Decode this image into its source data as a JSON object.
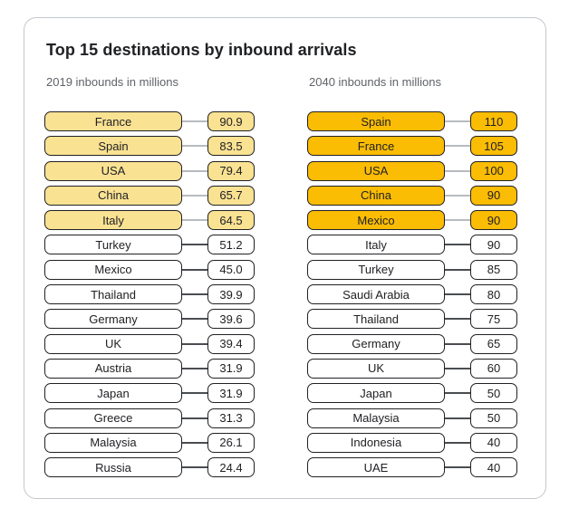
{
  "title": "Top 15 destinations by inbound arrivals",
  "colors": {
    "highlight_2019": "#FAE293",
    "highlight_2040": "#FBBC04",
    "pill_border": "#202124",
    "card_border": "#C3C7CB",
    "subtitle_text": "#5F6368",
    "connector_normal": "#4A4D51",
    "connector_highlighted": "#B7BBBF"
  },
  "columns": [
    {
      "subtitle": "2019 inbounds in millions",
      "highlight_color": "#FAE293",
      "rows": [
        {
          "label": "France",
          "value": "90.9",
          "highlighted": true
        },
        {
          "label": "Spain",
          "value": "83.5",
          "highlighted": true
        },
        {
          "label": "USA",
          "value": "79.4",
          "highlighted": true
        },
        {
          "label": "China",
          "value": "65.7",
          "highlighted": true
        },
        {
          "label": "Italy",
          "value": "64.5",
          "highlighted": true
        },
        {
          "label": "Turkey",
          "value": "51.2",
          "highlighted": false
        },
        {
          "label": "Mexico",
          "value": "45.0",
          "highlighted": false
        },
        {
          "label": "Thailand",
          "value": "39.9",
          "highlighted": false
        },
        {
          "label": "Germany",
          "value": "39.6",
          "highlighted": false
        },
        {
          "label": "UK",
          "value": "39.4",
          "highlighted": false
        },
        {
          "label": "Austria",
          "value": "31.9",
          "highlighted": false
        },
        {
          "label": "Japan",
          "value": "31.9",
          "highlighted": false
        },
        {
          "label": "Greece",
          "value": "31.3",
          "highlighted": false
        },
        {
          "label": "Malaysia",
          "value": "26.1",
          "highlighted": false
        },
        {
          "label": "Russia",
          "value": "24.4",
          "highlighted": false
        }
      ]
    },
    {
      "subtitle": "2040 inbounds in millions",
      "highlight_color": "#FBBC04",
      "rows": [
        {
          "label": "Spain",
          "value": "110",
          "highlighted": true
        },
        {
          "label": "France",
          "value": "105",
          "highlighted": true
        },
        {
          "label": "USA",
          "value": "100",
          "highlighted": true
        },
        {
          "label": "China",
          "value": "90",
          "highlighted": true
        },
        {
          "label": "Mexico",
          "value": "90",
          "highlighted": true
        },
        {
          "label": "Italy",
          "value": "90",
          "highlighted": false
        },
        {
          "label": "Turkey",
          "value": "85",
          "highlighted": false
        },
        {
          "label": "Saudi Arabia",
          "value": "80",
          "highlighted": false
        },
        {
          "label": "Thailand",
          "value": "75",
          "highlighted": false
        },
        {
          "label": "Germany",
          "value": "65",
          "highlighted": false
        },
        {
          "label": "UK",
          "value": "60",
          "highlighted": false
        },
        {
          "label": "Japan",
          "value": "50",
          "highlighted": false
        },
        {
          "label": "Malaysia",
          "value": "50",
          "highlighted": false
        },
        {
          "label": "Indonesia",
          "value": "40",
          "highlighted": false
        },
        {
          "label": "UAE",
          "value": "40",
          "highlighted": false
        }
      ]
    }
  ],
  "chart_data": [
    {
      "type": "table",
      "title": "Top 15 destinations by inbound arrivals",
      "subtitle": "2019 inbounds in millions",
      "categories": [
        "France",
        "Spain",
        "USA",
        "China",
        "Italy",
        "Turkey",
        "Mexico",
        "Thailand",
        "Germany",
        "UK",
        "Austria",
        "Japan",
        "Greece",
        "Malaysia",
        "Russia"
      ],
      "values": [
        90.9,
        83.5,
        79.4,
        65.7,
        64.5,
        51.2,
        45.0,
        39.9,
        39.6,
        39.4,
        31.9,
        31.9,
        31.3,
        26.1,
        24.4
      ],
      "highlighted_top5": [
        "France",
        "Spain",
        "USA",
        "China",
        "Italy"
      ]
    },
    {
      "type": "table",
      "title": "Top 15 destinations by inbound arrivals",
      "subtitle": "2040 inbounds in millions",
      "categories": [
        "Spain",
        "France",
        "USA",
        "China",
        "Mexico",
        "Italy",
        "Turkey",
        "Saudi Arabia",
        "Thailand",
        "Germany",
        "UK",
        "Japan",
        "Malaysia",
        "Indonesia",
        "UAE"
      ],
      "values": [
        110,
        105,
        100,
        90,
        90,
        90,
        85,
        80,
        75,
        65,
        60,
        50,
        50,
        40,
        40
      ],
      "highlighted_top5": [
        "Spain",
        "France",
        "USA",
        "China",
        "Mexico"
      ]
    }
  ]
}
